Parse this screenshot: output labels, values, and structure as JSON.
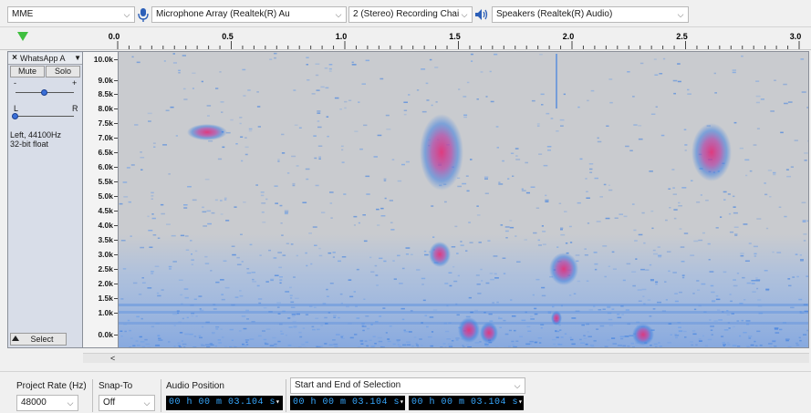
{
  "device_toolbar": {
    "host": "MME",
    "recording_device": "Microphone Array (Realtek(R) Au",
    "recording_channels": "2 (Stereo) Recording Chai",
    "playback_device": "Speakers (Realtek(R) Audio)"
  },
  "timeline": {
    "labels": [
      "0.0",
      "0.5",
      "1.0",
      "1.5",
      "2.0",
      "2.5",
      "3.0"
    ]
  },
  "track": {
    "name": "WhatsApp A",
    "close_label": "×",
    "menu_arrow": "▼",
    "mute_label": "Mute",
    "solo_label": "Solo",
    "gain_minus": "-",
    "gain_plus": "+",
    "pan_left": "L",
    "pan_right": "R",
    "info": "Left, 44100Hz\n32-bit float",
    "select_label": "Select"
  },
  "freq_ruler": {
    "labels": [
      "10.0k",
      "9.0k",
      "8.5k",
      "8.0k",
      "7.5k",
      "7.0k",
      "6.5k",
      "6.0k",
      "5.5k",
      "5.0k",
      "4.5k",
      "4.0k",
      "3.5k",
      "3.0k",
      "2.5k",
      "2.0k",
      "1.5k",
      "1.0k",
      "0.0k"
    ]
  },
  "scroll": {
    "left_arrow": "<"
  },
  "selection_toolbar": {
    "project_rate_label": "Project Rate (Hz)",
    "project_rate_value": "48000",
    "snap_to_label": "Snap-To",
    "snap_to_value": "Off",
    "audio_position_label": "Audio Position",
    "audio_position_value": "00 h 00 m 03.104 s",
    "selection_mode_label": "Start and End of Selection",
    "selection_start_value": "00 h 00 m 03.104 s",
    "selection_end_value": "00 h 00 m 03.104 s"
  },
  "colors": {
    "spectrogram_bg": "#c9cbcf",
    "blue": "#3d7fe0",
    "magenta": "#e0337a",
    "time_text": "#36a8ff",
    "play_green": "#3fbf3f"
  }
}
